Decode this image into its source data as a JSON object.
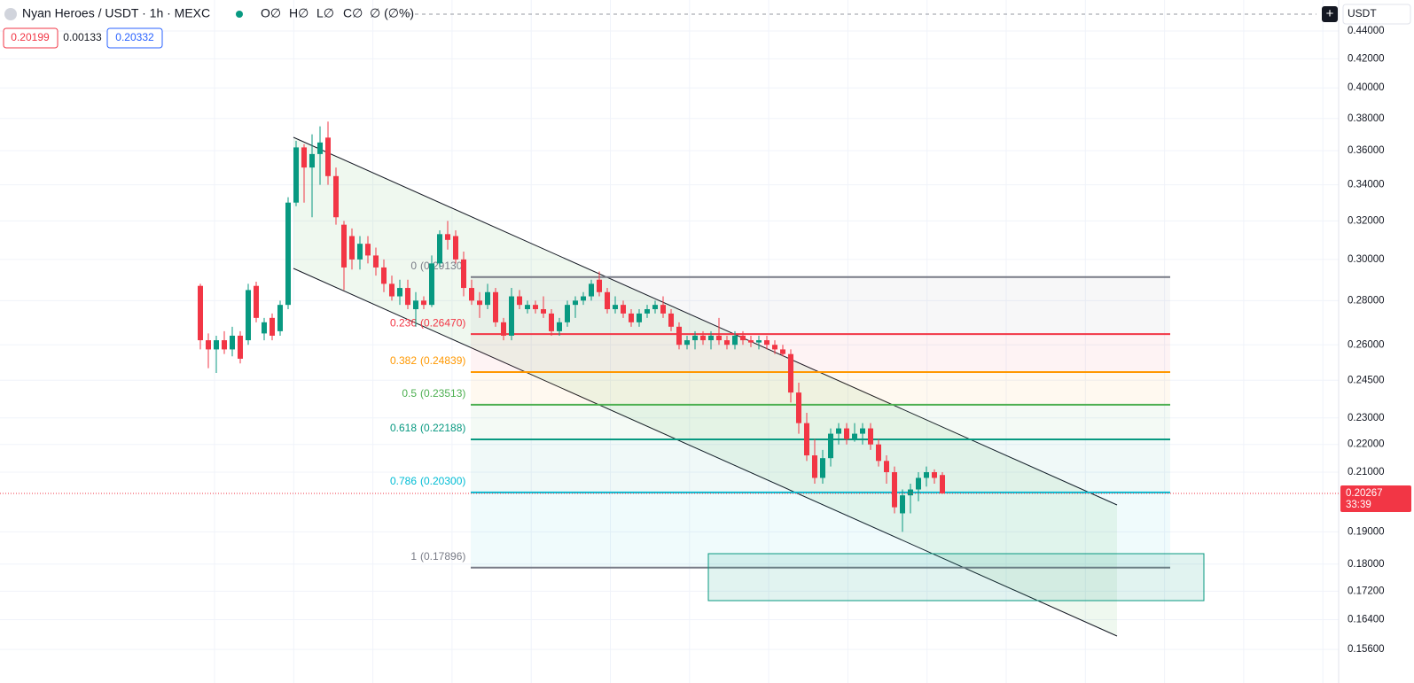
{
  "header": {
    "symbol": "Nyan Heroes / USDT · 1h · MEXC",
    "ohlc": [
      "O∅",
      "H∅",
      "L∅",
      "C∅",
      "∅ (∅%)"
    ],
    "bid": 0.20199,
    "spread": 0.00133,
    "ask": 0.20332,
    "currency": "USDT"
  },
  "chart_data": {
    "type": "candlestick",
    "log_scale": true,
    "up_color": "#089981",
    "down_color": "#f23645",
    "ylim": [
      0.1499,
      0.4635
    ],
    "yticks": [
      {
        "value": 0.44,
        "label": "0.44000"
      },
      {
        "value": 0.42,
        "label": "0.42000"
      },
      {
        "value": 0.4,
        "label": "0.40000"
      },
      {
        "value": 0.38,
        "label": "0.38000"
      },
      {
        "value": 0.36,
        "label": "0.36000"
      },
      {
        "value": 0.34,
        "label": "0.34000"
      },
      {
        "value": 0.32,
        "label": "0.32000"
      },
      {
        "value": 0.3,
        "label": "0.30000"
      },
      {
        "value": 0.28,
        "label": "0.28000"
      },
      {
        "value": 0.26,
        "label": "0.26000"
      },
      {
        "value": 0.245,
        "label": "0.24500"
      },
      {
        "value": 0.23,
        "label": "0.23000"
      },
      {
        "value": 0.22,
        "label": "0.22000"
      },
      {
        "value": 0.21,
        "label": "0.21000"
      },
      {
        "value": 0.19,
        "label": "0.19000"
      },
      {
        "value": 0.18,
        "label": "0.18000"
      },
      {
        "value": 0.172,
        "label": "0.17200"
      },
      {
        "value": 0.164,
        "label": "0.16400"
      },
      {
        "value": 0.156,
        "label": "0.15600"
      }
    ],
    "candles": [
      [
        0.287,
        0.288,
        0.258,
        0.262
      ],
      [
        0.262,
        0.265,
        0.25,
        0.258
      ],
      [
        0.258,
        0.264,
        0.248,
        0.262
      ],
      [
        0.262,
        0.266,
        0.256,
        0.258
      ],
      [
        0.258,
        0.268,
        0.255,
        0.264
      ],
      [
        0.264,
        0.266,
        0.252,
        0.254
      ],
      [
        0.262,
        0.288,
        0.26,
        0.285
      ],
      [
        0.287,
        0.289,
        0.27,
        0.272
      ],
      [
        0.265,
        0.272,
        0.262,
        0.27
      ],
      [
        0.272,
        0.274,
        0.262,
        0.264
      ],
      [
        0.266,
        0.28,
        0.264,
        0.278
      ],
      [
        0.278,
        0.333,
        0.276,
        0.33
      ],
      [
        0.33,
        0.366,
        0.328,
        0.362
      ],
      [
        0.362,
        0.364,
        0.33,
        0.35
      ],
      [
        0.35,
        0.37,
        0.322,
        0.358
      ],
      [
        0.358,
        0.375,
        0.34,
        0.365
      ],
      [
        0.368,
        0.378,
        0.34,
        0.345
      ],
      [
        0.345,
        0.35,
        0.318,
        0.322
      ],
      [
        0.318,
        0.32,
        0.285,
        0.296
      ],
      [
        0.312,
        0.316,
        0.295,
        0.3
      ],
      [
        0.3,
        0.312,
        0.295,
        0.308
      ],
      [
        0.308,
        0.312,
        0.298,
        0.302
      ],
      [
        0.302,
        0.306,
        0.292,
        0.296
      ],
      [
        0.296,
        0.3,
        0.284,
        0.288
      ],
      [
        0.288,
        0.292,
        0.28,
        0.282
      ],
      [
        0.282,
        0.29,
        0.278,
        0.286
      ],
      [
        0.286,
        0.29,
        0.276,
        0.278
      ],
      [
        0.276,
        0.284,
        0.268,
        0.28
      ],
      [
        0.28,
        0.282,
        0.276,
        0.278
      ],
      [
        0.278,
        0.302,
        0.277,
        0.298
      ],
      [
        0.298,
        0.315,
        0.296,
        0.313
      ],
      [
        0.313,
        0.32,
        0.305,
        0.31
      ],
      [
        0.312,
        0.315,
        0.298,
        0.3
      ],
      [
        0.3,
        0.304,
        0.282,
        0.286
      ],
      [
        0.286,
        0.29,
        0.278,
        0.28
      ],
      [
        0.28,
        0.284,
        0.272,
        0.278
      ],
      [
        0.278,
        0.288,
        0.276,
        0.284
      ],
      [
        0.284,
        0.286,
        0.268,
        0.27
      ],
      [
        0.27,
        0.272,
        0.262,
        0.264
      ],
      [
        0.264,
        0.286,
        0.262,
        0.282
      ],
      [
        0.282,
        0.285,
        0.276,
        0.278
      ],
      [
        0.276,
        0.28,
        0.274,
        0.278
      ],
      [
        0.278,
        0.28,
        0.274,
        0.276
      ],
      [
        0.276,
        0.282,
        0.272,
        0.274
      ],
      [
        0.274,
        0.276,
        0.264,
        0.266
      ],
      [
        0.266,
        0.272,
        0.264,
        0.27
      ],
      [
        0.27,
        0.28,
        0.268,
        0.278
      ],
      [
        0.278,
        0.282,
        0.272,
        0.28
      ],
      [
        0.28,
        0.284,
        0.278,
        0.282
      ],
      [
        0.282,
        0.29,
        0.28,
        0.288
      ],
      [
        0.29,
        0.294,
        0.282,
        0.284
      ],
      [
        0.284,
        0.286,
        0.274,
        0.276
      ],
      [
        0.276,
        0.282,
        0.274,
        0.278
      ],
      [
        0.278,
        0.28,
        0.272,
        0.274
      ],
      [
        0.274,
        0.276,
        0.268,
        0.27
      ],
      [
        0.27,
        0.276,
        0.268,
        0.274
      ],
      [
        0.274,
        0.278,
        0.272,
        0.276
      ],
      [
        0.276,
        0.28,
        0.274,
        0.278
      ],
      [
        0.278,
        0.282,
        0.272,
        0.274
      ],
      [
        0.274,
        0.276,
        0.266,
        0.268
      ],
      [
        0.268,
        0.27,
        0.258,
        0.26
      ],
      [
        0.26,
        0.264,
        0.258,
        0.262
      ],
      [
        0.262,
        0.266,
        0.258,
        0.264
      ],
      [
        0.264,
        0.266,
        0.26,
        0.262
      ],
      [
        0.262,
        0.266,
        0.258,
        0.264
      ],
      [
        0.264,
        0.272,
        0.26,
        0.262
      ],
      [
        0.262,
        0.264,
        0.258,
        0.26
      ],
      [
        0.26,
        0.266,
        0.258,
        0.264
      ],
      [
        0.264,
        0.266,
        0.26,
        0.262
      ],
      [
        0.262,
        0.264,
        0.259,
        0.261
      ],
      [
        0.261,
        0.264,
        0.258,
        0.262
      ],
      [
        0.262,
        0.264,
        0.258,
        0.26
      ],
      [
        0.26,
        0.262,
        0.256,
        0.258
      ],
      [
        0.258,
        0.26,
        0.255,
        0.256
      ],
      [
        0.256,
        0.258,
        0.236,
        0.24
      ],
      [
        0.24,
        0.244,
        0.224,
        0.228
      ],
      [
        0.228,
        0.232,
        0.214,
        0.216
      ],
      [
        0.216,
        0.222,
        0.206,
        0.208
      ],
      [
        0.208,
        0.218,
        0.206,
        0.215
      ],
      [
        0.215,
        0.226,
        0.212,
        0.224
      ],
      [
        0.224,
        0.228,
        0.22,
        0.226
      ],
      [
        0.226,
        0.228,
        0.22,
        0.222
      ],
      [
        0.222,
        0.228,
        0.221,
        0.224
      ],
      [
        0.224,
        0.228,
        0.22,
        0.226
      ],
      [
        0.226,
        0.228,
        0.218,
        0.22
      ],
      [
        0.22,
        0.222,
        0.212,
        0.214
      ],
      [
        0.214,
        0.216,
        0.206,
        0.21
      ],
      [
        0.21,
        0.212,
        0.196,
        0.198
      ],
      [
        0.196,
        0.204,
        0.19,
        0.202
      ],
      [
        0.202,
        0.206,
        0.196,
        0.204
      ],
      [
        0.204,
        0.21,
        0.2,
        0.208
      ],
      [
        0.208,
        0.212,
        0.205,
        0.21
      ],
      [
        0.21,
        0.211,
        0.206,
        0.208
      ],
      [
        0.209,
        0.21,
        0.2025,
        0.20267
      ]
    ],
    "fib_levels": [
      {
        "ratio": 0,
        "price": 0.2913,
        "label": "(0.29130)",
        "color": "#787b86"
      },
      {
        "ratio": 0.236,
        "price": 0.2647,
        "label": "(0.26470)",
        "color": "#f23645"
      },
      {
        "ratio": 0.382,
        "price": 0.24839,
        "label": "(0.24839)",
        "color": "#ff9800"
      },
      {
        "ratio": 0.5,
        "price": 0.23513,
        "label": "(0.23513)",
        "color": "#4caf50"
      },
      {
        "ratio": 0.618,
        "price": 0.22188,
        "label": "(0.22188)",
        "color": "#089981"
      },
      {
        "ratio": 0.786,
        "price": 0.203,
        "label": "(0.20300)",
        "color": "#00bcd4"
      },
      {
        "ratio": 1,
        "price": 0.17896,
        "label": "(0.17896)",
        "color": "#787b86"
      }
    ],
    "last_price": 0.20267,
    "countdown": "33:39"
  }
}
